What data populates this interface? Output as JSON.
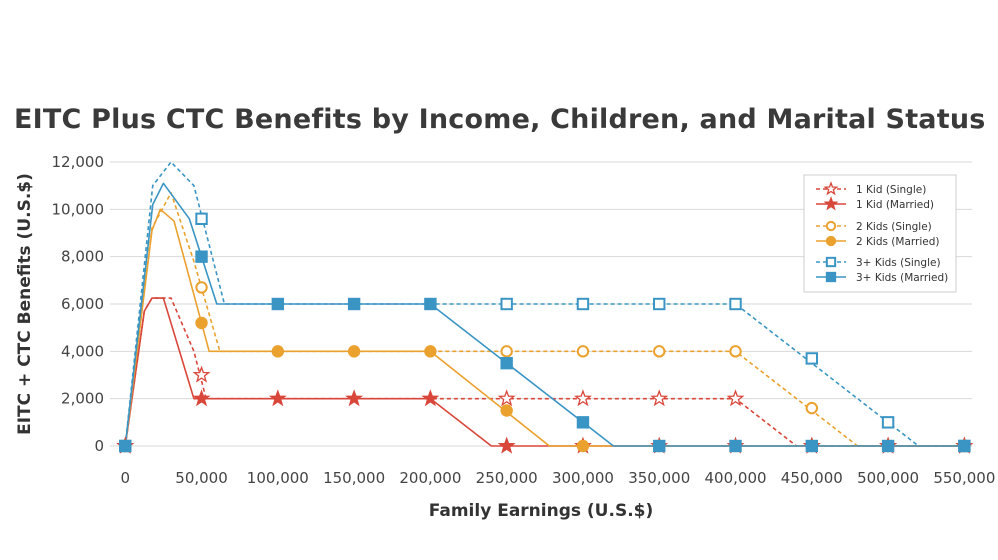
{
  "chart_data": {
    "type": "line",
    "title": "EITC Plus CTC Benefits by Income, Children, and Marital Status",
    "xlabel": "Family Earnings (U.S.$)",
    "ylabel": "EITC + CTC Benefits (U.S.$)",
    "xlim": [
      -10000,
      555000
    ],
    "ylim": [
      0,
      12000
    ],
    "x_ticks": [
      0,
      50000,
      100000,
      150000,
      200000,
      250000,
      300000,
      350000,
      400000,
      450000,
      500000,
      550000
    ],
    "x_tick_labels": [
      "0",
      "50,000",
      "100,000",
      "150,000",
      "200,000",
      "250,000",
      "300,000",
      "350,000",
      "400,000",
      "450,000",
      "500,000",
      "550,000"
    ],
    "y_ticks": [
      0,
      2000,
      4000,
      6000,
      8000,
      10000,
      12000
    ],
    "y_tick_labels": [
      "0",
      "2,000",
      "4,000",
      "6,000",
      "8,000",
      "10,000",
      "12,000"
    ],
    "grid": "horizontal",
    "legend_position": "top-right",
    "series": [
      {
        "name": "1 Kid (Single)",
        "color": "#d9463a",
        "dashed": true,
        "marker": "star",
        "filled": false,
        "line": [
          [
            0,
            0
          ],
          [
            12500,
            5700
          ],
          [
            17500,
            6250
          ],
          [
            30000,
            6250
          ],
          [
            45000,
            4000
          ],
          [
            53000,
            2000
          ],
          [
            400000,
            2000
          ],
          [
            440000,
            0
          ],
          [
            550000,
            0
          ]
        ],
        "markers": [
          [
            0,
            0
          ],
          [
            50000,
            3000
          ],
          [
            250000,
            2000
          ],
          [
            300000,
            2000
          ],
          [
            350000,
            2000
          ],
          [
            400000,
            2000
          ],
          [
            450000,
            0
          ],
          [
            500000,
            0
          ],
          [
            550000,
            0
          ]
        ]
      },
      {
        "name": "1 Kid (Married)",
        "color": "#d9463a",
        "dashed": false,
        "marker": "star",
        "filled": true,
        "line": [
          [
            0,
            0
          ],
          [
            12500,
            5700
          ],
          [
            17500,
            6250
          ],
          [
            25000,
            6250
          ],
          [
            45000,
            2000
          ],
          [
            200000,
            2000
          ],
          [
            240000,
            0
          ],
          [
            550000,
            0
          ]
        ],
        "markers": [
          [
            0,
            0
          ],
          [
            50000,
            2000
          ],
          [
            100000,
            2000
          ],
          [
            150000,
            2000
          ],
          [
            200000,
            2000
          ],
          [
            250000,
            0
          ],
          [
            300000,
            0
          ],
          [
            350000,
            0
          ],
          [
            400000,
            0
          ],
          [
            450000,
            0
          ],
          [
            500000,
            0
          ],
          [
            550000,
            0
          ]
        ]
      },
      {
        "name": "2 Kids (Single)",
        "color": "#eaa12e",
        "dashed": true,
        "marker": "circle",
        "filled": false,
        "line": [
          [
            0,
            0
          ],
          [
            17500,
            9200
          ],
          [
            30000,
            10700
          ],
          [
            45000,
            7800
          ],
          [
            62000,
            4000
          ],
          [
            400000,
            4000
          ],
          [
            480000,
            0
          ],
          [
            550000,
            0
          ]
        ],
        "markers": [
          [
            0,
            0
          ],
          [
            50000,
            6700
          ],
          [
            250000,
            4000
          ],
          [
            300000,
            4000
          ],
          [
            350000,
            4000
          ],
          [
            400000,
            4000
          ],
          [
            450000,
            1600
          ],
          [
            500000,
            0
          ],
          [
            550000,
            0
          ]
        ]
      },
      {
        "name": "2 Kids (Married)",
        "color": "#eaa12e",
        "dashed": false,
        "marker": "circle",
        "filled": true,
        "line": [
          [
            0,
            0
          ],
          [
            17500,
            9100
          ],
          [
            23000,
            10000
          ],
          [
            32000,
            9500
          ],
          [
            55000,
            4000
          ],
          [
            200000,
            4000
          ],
          [
            278000,
            0
          ],
          [
            550000,
            0
          ]
        ],
        "markers": [
          [
            0,
            0
          ],
          [
            50000,
            5200
          ],
          [
            100000,
            4000
          ],
          [
            150000,
            4000
          ],
          [
            200000,
            4000
          ],
          [
            250000,
            1500
          ],
          [
            300000,
            0
          ],
          [
            350000,
            0
          ],
          [
            400000,
            0
          ],
          [
            450000,
            0
          ],
          [
            500000,
            0
          ],
          [
            550000,
            0
          ]
        ]
      },
      {
        "name": "3+ Kids (Single)",
        "color": "#3a95c4",
        "dashed": true,
        "marker": "square",
        "filled": false,
        "line": [
          [
            0,
            0
          ],
          [
            18000,
            11000
          ],
          [
            30000,
            12000
          ],
          [
            45000,
            11000
          ],
          [
            65000,
            6000
          ],
          [
            400000,
            6000
          ],
          [
            520000,
            0
          ],
          [
            550000,
            0
          ]
        ],
        "markers": [
          [
            0,
            0
          ],
          [
            50000,
            9600
          ],
          [
            250000,
            6000
          ],
          [
            300000,
            6000
          ],
          [
            350000,
            6000
          ],
          [
            400000,
            6000
          ],
          [
            450000,
            3700
          ],
          [
            500000,
            1000
          ],
          [
            550000,
            0
          ]
        ]
      },
      {
        "name": "3+ Kids (Married)",
        "color": "#3a95c4",
        "dashed": false,
        "marker": "square",
        "filled": true,
        "line": [
          [
            0,
            0
          ],
          [
            18000,
            10200
          ],
          [
            25000,
            11100
          ],
          [
            42000,
            9600
          ],
          [
            60000,
            6000
          ],
          [
            200000,
            6000
          ],
          [
            320000,
            0
          ],
          [
            550000,
            0
          ]
        ],
        "markers": [
          [
            0,
            0
          ],
          [
            50000,
            8000
          ],
          [
            100000,
            6000
          ],
          [
            150000,
            6000
          ],
          [
            200000,
            6000
          ],
          [
            250000,
            3500
          ],
          [
            300000,
            1000
          ],
          [
            350000,
            0
          ],
          [
            400000,
            0
          ],
          [
            450000,
            0
          ],
          [
            500000,
            0
          ],
          [
            550000,
            0
          ]
        ]
      }
    ]
  }
}
